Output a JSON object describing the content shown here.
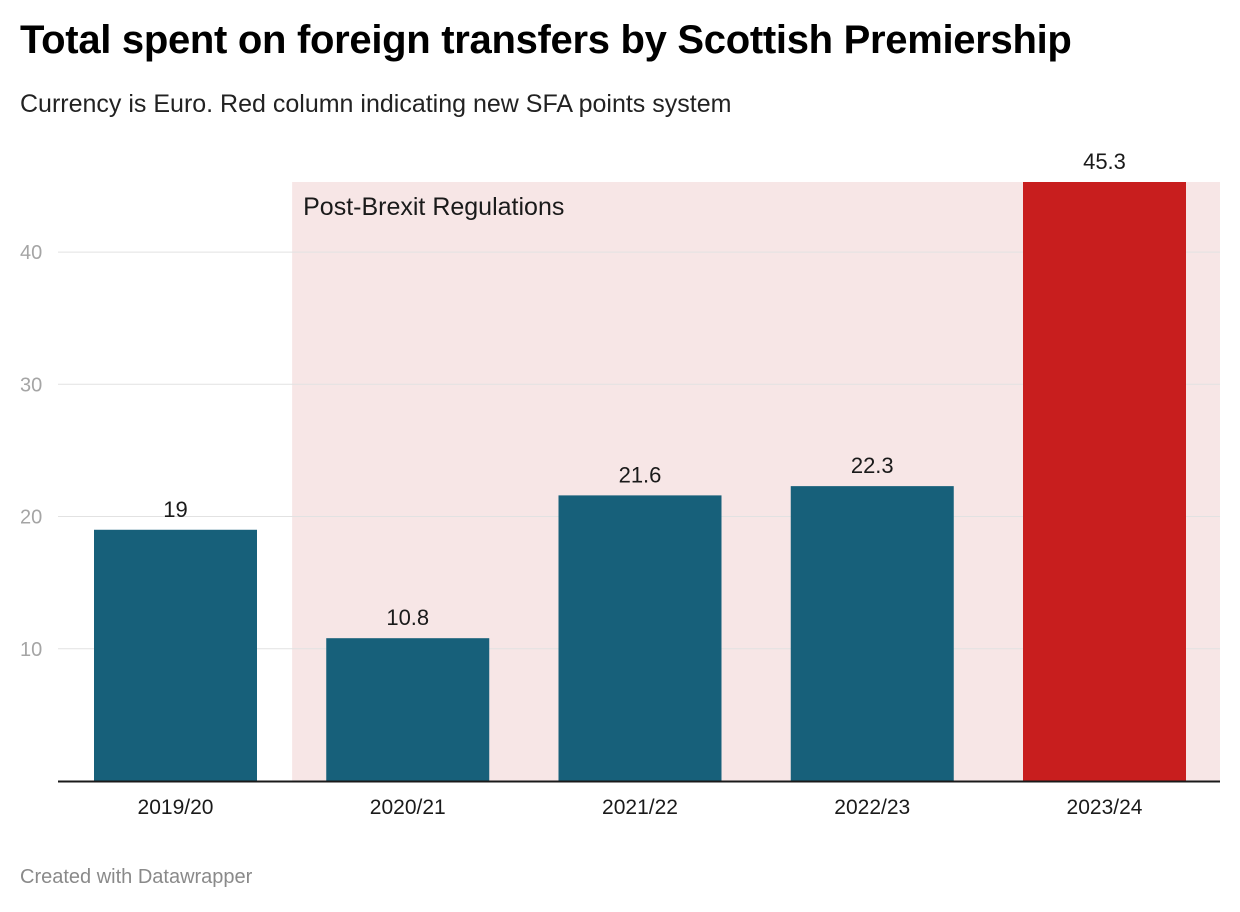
{
  "header": {
    "title": "Total spent on foreign transfers by Scottish Premiership",
    "subtitle": "Currency is Euro. Red column indicating new SFA points system"
  },
  "footer": {
    "credit": "Created with Datawrapper"
  },
  "chart_data": {
    "type": "bar",
    "categories": [
      "2019/20",
      "2020/21",
      "2021/22",
      "2022/23",
      "2023/24"
    ],
    "values": [
      19,
      10.8,
      21.6,
      22.3,
      45.3
    ],
    "value_labels": [
      "19",
      "10.8",
      "21.6",
      "22.3",
      "45.3"
    ],
    "yticks": [
      10,
      20,
      30,
      40
    ],
    "ytick_labels": [
      "10",
      "20",
      "30",
      "40"
    ],
    "ylim": [
      0,
      45.3
    ],
    "grid": true,
    "bar_colors": [
      "#17607a",
      "#17607a",
      "#17607a",
      "#17607a",
      "#c81e1e"
    ],
    "highlight_region": {
      "label": "Post-Brexit Regulations",
      "from_category": "2020/21",
      "color": "#f7e6e6"
    }
  }
}
